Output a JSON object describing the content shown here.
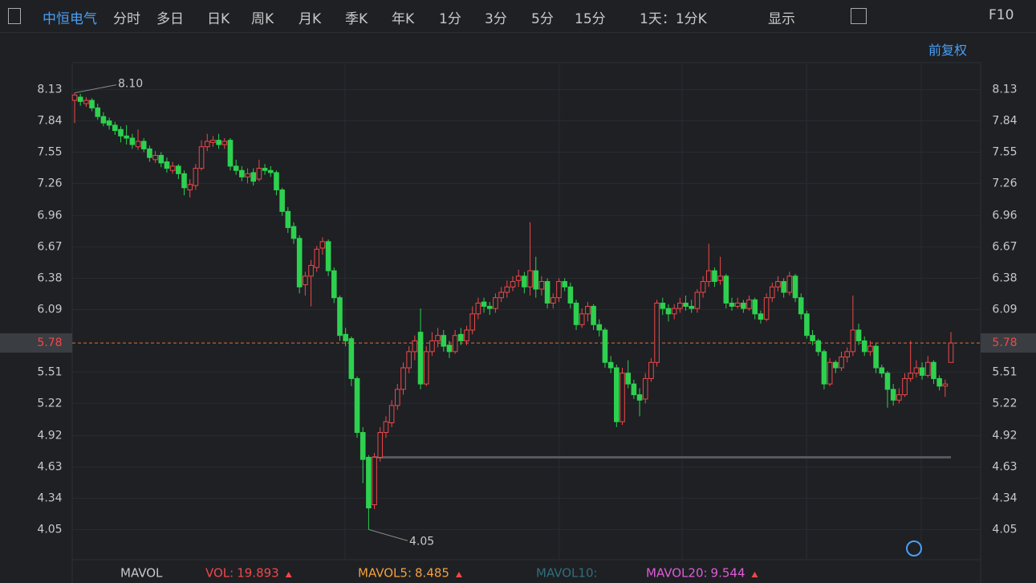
{
  "toolbar": {
    "stock_name": "中恒电气",
    "tabs": [
      "分时",
      "多日",
      "日K",
      "周K",
      "月K",
      "季K",
      "年K",
      "1分",
      "3分",
      "5分",
      "15分"
    ],
    "active_tab": "日K",
    "period_select": "1天：1分K",
    "display": "显示",
    "f10": "F10"
  },
  "adjust": "前复权",
  "chart_data": {
    "type": "candlestick",
    "ylim": [
      3.77,
      8.38
    ],
    "yticks": [
      8.13,
      7.84,
      7.55,
      7.26,
      6.96,
      6.67,
      6.38,
      6.09,
      5.51,
      5.22,
      4.92,
      4.63,
      4.34,
      4.05
    ],
    "up_color": "#f04848",
    "down_color": "#2ed14f",
    "last_price": 5.78,
    "max_annotation": {
      "value": 8.1,
      "label": "8.10"
    },
    "min_annotation": 4.05,
    "support_line": 4.72,
    "candles": [
      [
        8.03,
        8.1,
        7.82,
        8.08
      ],
      [
        8.06,
        8.09,
        7.98,
        8.02
      ],
      [
        8.0,
        8.06,
        7.97,
        8.03
      ],
      [
        8.03,
        8.05,
        7.93,
        7.96
      ],
      [
        7.96,
        8.0,
        7.85,
        7.88
      ],
      [
        7.88,
        7.92,
        7.79,
        7.82
      ],
      [
        7.84,
        7.87,
        7.76,
        7.8
      ],
      [
        7.8,
        7.83,
        7.71,
        7.75
      ],
      [
        7.76,
        7.79,
        7.64,
        7.7
      ],
      [
        7.7,
        7.8,
        7.62,
        7.68
      ],
      [
        7.68,
        7.72,
        7.58,
        7.62
      ],
      [
        7.6,
        7.76,
        7.57,
        7.65
      ],
      [
        7.65,
        7.68,
        7.55,
        7.58
      ],
      [
        7.58,
        7.61,
        7.46,
        7.5
      ],
      [
        7.48,
        7.56,
        7.45,
        7.52
      ],
      [
        7.52,
        7.55,
        7.41,
        7.45
      ],
      [
        7.46,
        7.5,
        7.36,
        7.4
      ],
      [
        7.38,
        7.46,
        7.35,
        7.42
      ],
      [
        7.42,
        7.44,
        7.3,
        7.35
      ],
      [
        7.35,
        7.38,
        7.15,
        7.22
      ],
      [
        7.2,
        7.3,
        7.13,
        7.25
      ],
      [
        7.24,
        7.44,
        7.2,
        7.4
      ],
      [
        7.4,
        7.66,
        7.38,
        7.6
      ],
      [
        7.6,
        7.72,
        7.56,
        7.65
      ],
      [
        7.64,
        7.7,
        7.6,
        7.66
      ],
      [
        7.66,
        7.72,
        7.58,
        7.62
      ],
      [
        7.62,
        7.68,
        7.58,
        7.65
      ],
      [
        7.66,
        7.68,
        7.38,
        7.42
      ],
      [
        7.42,
        7.48,
        7.34,
        7.38
      ],
      [
        7.38,
        7.42,
        7.28,
        7.32
      ],
      [
        7.32,
        7.4,
        7.26,
        7.35
      ],
      [
        7.36,
        7.4,
        7.24,
        7.28
      ],
      [
        7.3,
        7.48,
        7.28,
        7.4
      ],
      [
        7.4,
        7.44,
        7.34,
        7.38
      ],
      [
        7.38,
        7.42,
        7.32,
        7.36
      ],
      [
        7.36,
        7.38,
        7.15,
        7.2
      ],
      [
        7.2,
        7.22,
        6.96,
        7.0
      ],
      [
        7.0,
        7.04,
        6.8,
        6.85
      ],
      [
        6.86,
        6.9,
        6.7,
        6.75
      ],
      [
        6.75,
        6.78,
        6.24,
        6.3
      ],
      [
        6.32,
        6.44,
        6.22,
        6.4
      ],
      [
        6.4,
        6.55,
        6.12,
        6.5
      ],
      [
        6.48,
        6.68,
        6.44,
        6.65
      ],
      [
        6.66,
        6.76,
        6.6,
        6.72
      ],
      [
        6.72,
        6.74,
        6.4,
        6.45
      ],
      [
        6.45,
        6.48,
        6.15,
        6.2
      ],
      [
        6.2,
        6.22,
        5.8,
        5.85
      ],
      [
        5.86,
        5.92,
        5.75,
        5.8
      ],
      [
        5.82,
        5.84,
        5.38,
        5.45
      ],
      [
        5.45,
        5.47,
        4.9,
        4.95
      ],
      [
        4.95,
        5.0,
        4.48,
        4.7
      ],
      [
        4.72,
        4.74,
        4.05,
        4.25
      ],
      [
        4.28,
        4.76,
        4.24,
        4.72
      ],
      [
        4.72,
        5.0,
        4.68,
        4.95
      ],
      [
        4.95,
        5.1,
        4.9,
        5.05
      ],
      [
        5.04,
        5.25,
        5.0,
        5.2
      ],
      [
        5.2,
        5.4,
        5.16,
        5.35
      ],
      [
        5.35,
        5.6,
        5.3,
        5.55
      ],
      [
        5.55,
        5.75,
        5.5,
        5.7
      ],
      [
        5.7,
        5.85,
        5.62,
        5.8
      ],
      [
        5.88,
        6.1,
        5.35,
        5.4
      ],
      [
        5.4,
        5.75,
        5.38,
        5.7
      ],
      [
        5.7,
        5.88,
        5.66,
        5.8
      ],
      [
        5.8,
        5.92,
        5.74,
        5.85
      ],
      [
        5.85,
        5.9,
        5.7,
        5.75
      ],
      [
        5.76,
        5.8,
        5.64,
        5.7
      ],
      [
        5.7,
        5.9,
        5.68,
        5.85
      ],
      [
        5.86,
        5.92,
        5.76,
        5.8
      ],
      [
        5.8,
        5.94,
        5.76,
        5.9
      ],
      [
        5.9,
        6.12,
        5.86,
        6.05
      ],
      [
        6.05,
        6.2,
        6.0,
        6.15
      ],
      [
        6.16,
        6.2,
        6.06,
        6.12
      ],
      [
        6.12,
        6.16,
        6.04,
        6.1
      ],
      [
        6.1,
        6.24,
        6.06,
        6.2
      ],
      [
        6.2,
        6.3,
        6.16,
        6.25
      ],
      [
        6.25,
        6.36,
        6.2,
        6.3
      ],
      [
        6.3,
        6.4,
        6.26,
        6.35
      ],
      [
        6.36,
        6.46,
        6.3,
        6.4
      ],
      [
        6.4,
        6.44,
        6.24,
        6.3
      ],
      [
        6.3,
        6.9,
        6.22,
        6.45
      ],
      [
        6.45,
        6.58,
        6.2,
        6.28
      ],
      [
        6.28,
        6.4,
        6.22,
        6.35
      ],
      [
        6.35,
        6.38,
        6.1,
        6.15
      ],
      [
        6.15,
        6.24,
        6.1,
        6.2
      ],
      [
        6.2,
        6.38,
        6.16,
        6.35
      ],
      [
        6.35,
        6.38,
        6.26,
        6.3
      ],
      [
        6.3,
        6.34,
        6.1,
        6.15
      ],
      [
        6.15,
        6.18,
        5.9,
        5.95
      ],
      [
        5.95,
        6.1,
        5.92,
        6.05
      ],
      [
        6.05,
        6.16,
        5.98,
        6.12
      ],
      [
        6.12,
        6.14,
        5.9,
        5.95
      ],
      [
        5.95,
        6.0,
        5.84,
        5.9
      ],
      [
        5.9,
        5.92,
        5.55,
        5.6
      ],
      [
        5.6,
        5.66,
        5.5,
        5.55
      ],
      [
        5.55,
        5.58,
        5.0,
        5.05
      ],
      [
        5.05,
        5.55,
        5.02,
        5.5
      ],
      [
        5.5,
        5.62,
        5.36,
        5.4
      ],
      [
        5.4,
        5.44,
        5.26,
        5.3
      ],
      [
        5.3,
        5.36,
        5.1,
        5.25
      ],
      [
        5.26,
        5.5,
        5.22,
        5.45
      ],
      [
        5.45,
        5.64,
        5.42,
        5.6
      ],
      [
        5.6,
        6.18,
        5.56,
        6.15
      ],
      [
        6.15,
        6.2,
        6.04,
        6.1
      ],
      [
        6.1,
        6.14,
        5.98,
        6.05
      ],
      [
        6.05,
        6.14,
        6.0,
        6.1
      ],
      [
        6.1,
        6.2,
        6.06,
        6.15
      ],
      [
        6.15,
        6.22,
        6.08,
        6.12
      ],
      [
        6.12,
        6.18,
        6.06,
        6.1
      ],
      [
        6.1,
        6.28,
        6.06,
        6.25
      ],
      [
        6.25,
        6.4,
        6.2,
        6.35
      ],
      [
        6.35,
        6.7,
        6.3,
        6.45
      ],
      [
        6.45,
        6.48,
        6.3,
        6.35
      ],
      [
        6.36,
        6.58,
        6.32,
        6.4
      ],
      [
        6.4,
        6.42,
        6.1,
        6.15
      ],
      [
        6.15,
        6.2,
        6.08,
        6.12
      ],
      [
        6.12,
        6.2,
        6.1,
        6.15
      ],
      [
        6.15,
        6.18,
        6.06,
        6.1
      ],
      [
        6.1,
        6.22,
        6.08,
        6.18
      ],
      [
        6.18,
        6.2,
        6.0,
        6.05
      ],
      [
        6.05,
        6.08,
        5.96,
        6.0
      ],
      [
        6.0,
        6.24,
        5.98,
        6.2
      ],
      [
        6.2,
        6.34,
        6.16,
        6.3
      ],
      [
        6.3,
        6.4,
        6.26,
        6.35
      ],
      [
        6.35,
        6.38,
        6.2,
        6.25
      ],
      [
        6.25,
        6.44,
        6.22,
        6.4
      ],
      [
        6.4,
        6.42,
        6.16,
        6.2
      ],
      [
        6.2,
        6.24,
        6.0,
        6.05
      ],
      [
        6.05,
        6.08,
        5.82,
        5.85
      ],
      [
        5.85,
        5.9,
        5.76,
        5.8
      ],
      [
        5.8,
        5.82,
        5.66,
        5.7
      ],
      [
        5.7,
        5.72,
        5.35,
        5.4
      ],
      [
        5.4,
        5.64,
        5.38,
        5.6
      ],
      [
        5.6,
        5.62,
        5.5,
        5.55
      ],
      [
        5.55,
        5.7,
        5.52,
        5.65
      ],
      [
        5.65,
        5.74,
        5.6,
        5.7
      ],
      [
        5.7,
        6.22,
        5.66,
        5.9
      ],
      [
        5.9,
        5.96,
        5.76,
        5.8
      ],
      [
        5.8,
        5.84,
        5.66,
        5.7
      ],
      [
        5.7,
        5.8,
        5.66,
        5.75
      ],
      [
        5.75,
        5.78,
        5.5,
        5.55
      ],
      [
        5.55,
        5.58,
        5.46,
        5.5
      ],
      [
        5.5,
        5.52,
        5.18,
        5.35
      ],
      [
        5.35,
        5.4,
        5.2,
        5.25
      ],
      [
        5.25,
        5.36,
        5.22,
        5.3
      ],
      [
        5.3,
        5.5,
        5.28,
        5.45
      ],
      [
        5.45,
        5.8,
        5.42,
        5.5
      ],
      [
        5.5,
        5.62,
        5.46,
        5.55
      ],
      [
        5.55,
        5.6,
        5.44,
        5.48
      ],
      [
        5.48,
        5.66,
        5.46,
        5.6
      ],
      [
        5.6,
        5.62,
        5.4,
        5.45
      ],
      [
        5.45,
        5.48,
        5.34,
        5.38
      ],
      [
        5.38,
        5.44,
        5.28,
        5.4
      ],
      [
        5.6,
        5.88,
        5.6,
        5.78
      ]
    ]
  },
  "indicator": {
    "name": "MAVOL",
    "items": [
      {
        "label": "VOL:",
        "value": 19.893,
        "color": "#f04848"
      },
      {
        "label": "MAVOL5:",
        "value": 8.485,
        "color": "#f5a03a"
      },
      {
        "label": "MAVOL10:",
        "color": "#2f6f7a"
      },
      {
        "label": "MAVOL20:",
        "value": 9.544,
        "color": "#e05ad8"
      }
    ]
  }
}
